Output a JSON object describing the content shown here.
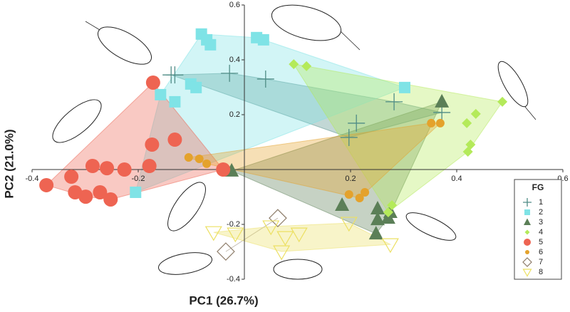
{
  "chart_data": {
    "type": "scatter",
    "x_label": "PC1 (26.7%)",
    "y_label": "PC2 (21.0%)",
    "xlim": [
      -0.4,
      0.6
    ],
    "ylim": [
      -0.4,
      0.6
    ],
    "xticks": [
      -0.4,
      -0.2,
      0.2,
      0.4,
      0.6
    ],
    "yticks": [
      -0.4,
      -0.2,
      0.2,
      0.4,
      0.6
    ],
    "legend_title": "FG",
    "legend": "lower right",
    "hulls": true,
    "series": [
      {
        "name": "1",
        "color": "#4f8c86",
        "marker": "plus",
        "x": [
          -0.138,
          -0.131,
          -0.028,
          0.04,
          0.282,
          0.211,
          0.197,
          0.372
        ],
        "values": [
          0.345,
          0.345,
          0.351,
          0.33,
          0.247,
          0.169,
          0.117,
          0.208
        ]
      },
      {
        "name": "2",
        "color": "#7fe3e6",
        "marker": "square",
        "x": [
          -0.081,
          -0.071,
          -0.064,
          0.023,
          0.036,
          0.302,
          -0.158,
          -0.131,
          -0.101,
          -0.091,
          -0.205
        ],
        "values": [
          0.494,
          0.473,
          0.455,
          0.481,
          0.473,
          0.299,
          0.273,
          0.247,
          0.312,
          0.299,
          -0.083
        ]
      },
      {
        "name": "3",
        "color": "#5b7f57",
        "marker": "triangle",
        "x": [
          -0.024,
          0.372,
          0.184,
          0.251,
          0.275,
          0.251,
          0.271,
          0.248
        ],
        "values": [
          -0.005,
          0.247,
          -0.13,
          -0.143,
          -0.156,
          -0.182,
          -0.177,
          -0.234
        ]
      },
      {
        "name": "4",
        "color": "#b4ea5a",
        "marker": "diamond",
        "x": [
          0.093,
          0.117,
          0.486,
          0.436,
          0.419,
          0.426,
          0.421,
          0.278,
          0.271
        ],
        "values": [
          0.384,
          0.377,
          0.247,
          0.203,
          0.169,
          0.091,
          0.065,
          -0.13,
          -0.156
        ]
      },
      {
        "name": "5",
        "color": "#ee6452",
        "marker": "circle",
        "x": [
          -0.172,
          -0.174,
          -0.131,
          -0.179,
          -0.373,
          -0.326,
          -0.286,
          -0.259,
          -0.226,
          -0.319,
          -0.272,
          -0.252,
          -0.299,
          -0.04
        ],
        "values": [
          0.317,
          0.091,
          0.109,
          0.013,
          -0.057,
          -0.026,
          0.013,
          0.005,
          0,
          -0.083,
          -0.083,
          -0.109,
          -0.099,
          0
        ]
      },
      {
        "name": "6",
        "color": "#e4a22c",
        "marker": "small-circle",
        "x": [
          -0.105,
          -0.085,
          -0.071,
          0.352,
          0.369,
          0.197,
          0.217,
          0.227
        ],
        "values": [
          0.044,
          0.039,
          0.021,
          0.169,
          0.169,
          -0.091,
          -0.104,
          -0.083
        ]
      },
      {
        "name": "7",
        "color": "#8c7b68",
        "marker": "open-diamond",
        "x": [
          0.063,
          -0.035
        ],
        "values": [
          -0.177,
          -0.299
        ]
      },
      {
        "name": "8",
        "color": "#ece063",
        "marker": "open-triangle-down",
        "x": [
          -0.058,
          -0.017,
          0.05,
          0.077,
          0.103,
          0.197,
          0.275,
          0.07
        ],
        "values": [
          -0.229,
          -0.234,
          -0.208,
          -0.247,
          -0.234,
          -0.195,
          -0.273,
          -0.299
        ]
      }
    ]
  }
}
